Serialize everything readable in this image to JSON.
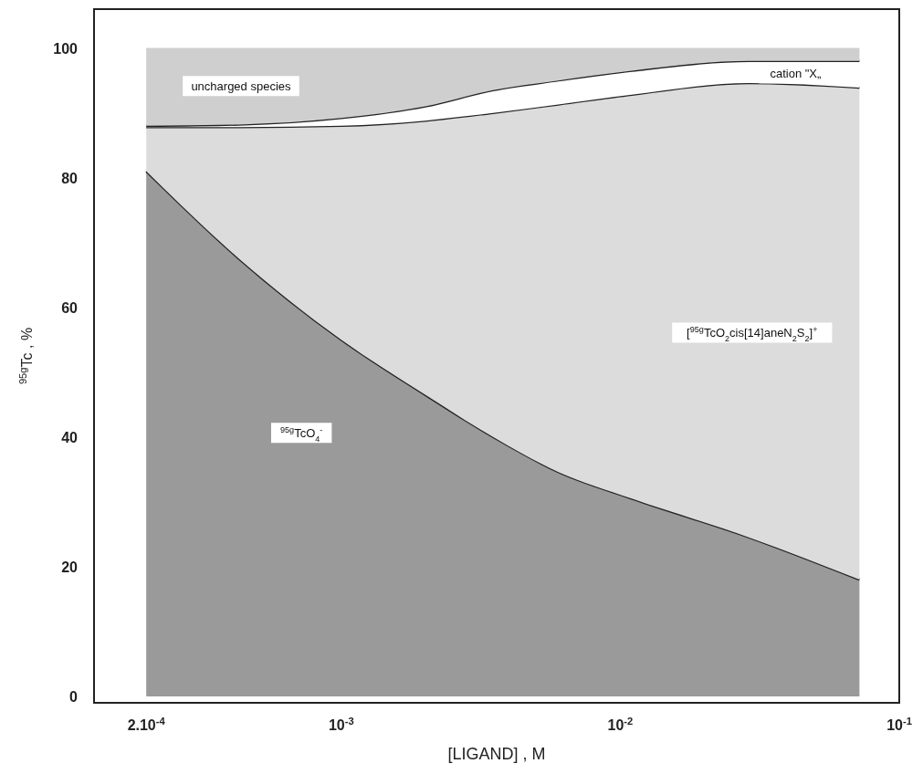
{
  "chart_data": {
    "type": "area",
    "stacked": true,
    "log": "x",
    "grid": false,
    "xlabel": "[LIGAND] , M",
    "ylabel": "$^{95g}$Tc , %",
    "x": [
      0.0002,
      0.00043,
      0.001,
      0.002,
      0.0035,
      0.006,
      0.011,
      0.029,
      0.072
    ],
    "xlim": [
      0.00013,
      0.1
    ],
    "xticks": [
      {
        "value": 0.0002,
        "label": "2.10$^{-4}$"
      },
      {
        "value": 0.001,
        "label": "10$^{-3}$"
      },
      {
        "value": 0.01,
        "label": "10$^{-2}$"
      },
      {
        "value": 0.1,
        "label": "10$^{-1}$"
      }
    ],
    "ylim": [
      -1,
      106
    ],
    "yticks": [
      0,
      20,
      40,
      60,
      80,
      100
    ],
    "series": [
      {
        "name": "$^{95g}$TcO$_{4}$$^{-}$",
        "color": "#9a9a9a",
        "values": [
          81,
          67.5,
          55,
          46.5,
          40,
          34.6,
          30.5,
          24.5,
          18
        ]
      },
      {
        "name": "[$^{95g}$TcO$_{2}$cis[14]aneN$_{2}$S$_{2}$]$^{+}$",
        "color": "#dcdcdc",
        "values": [
          6.8,
          20.3,
          33,
          42.3,
          50,
          56.7,
          62.3,
          70.1,
          75.9
        ]
      },
      {
        "name": "cation \"X„",
        "color": "#ffffff",
        "values": [
          0.2,
          0.4,
          1.2,
          2.2,
          3.5,
          3.7,
          3.7,
          3.4,
          4.1
        ]
      },
      {
        "name": "uncharged species",
        "color": "#cfcfcf",
        "values": [
          12,
          11.8,
          10.8,
          9,
          6.5,
          5,
          3.5,
          2,
          2
        ]
      }
    ]
  }
}
